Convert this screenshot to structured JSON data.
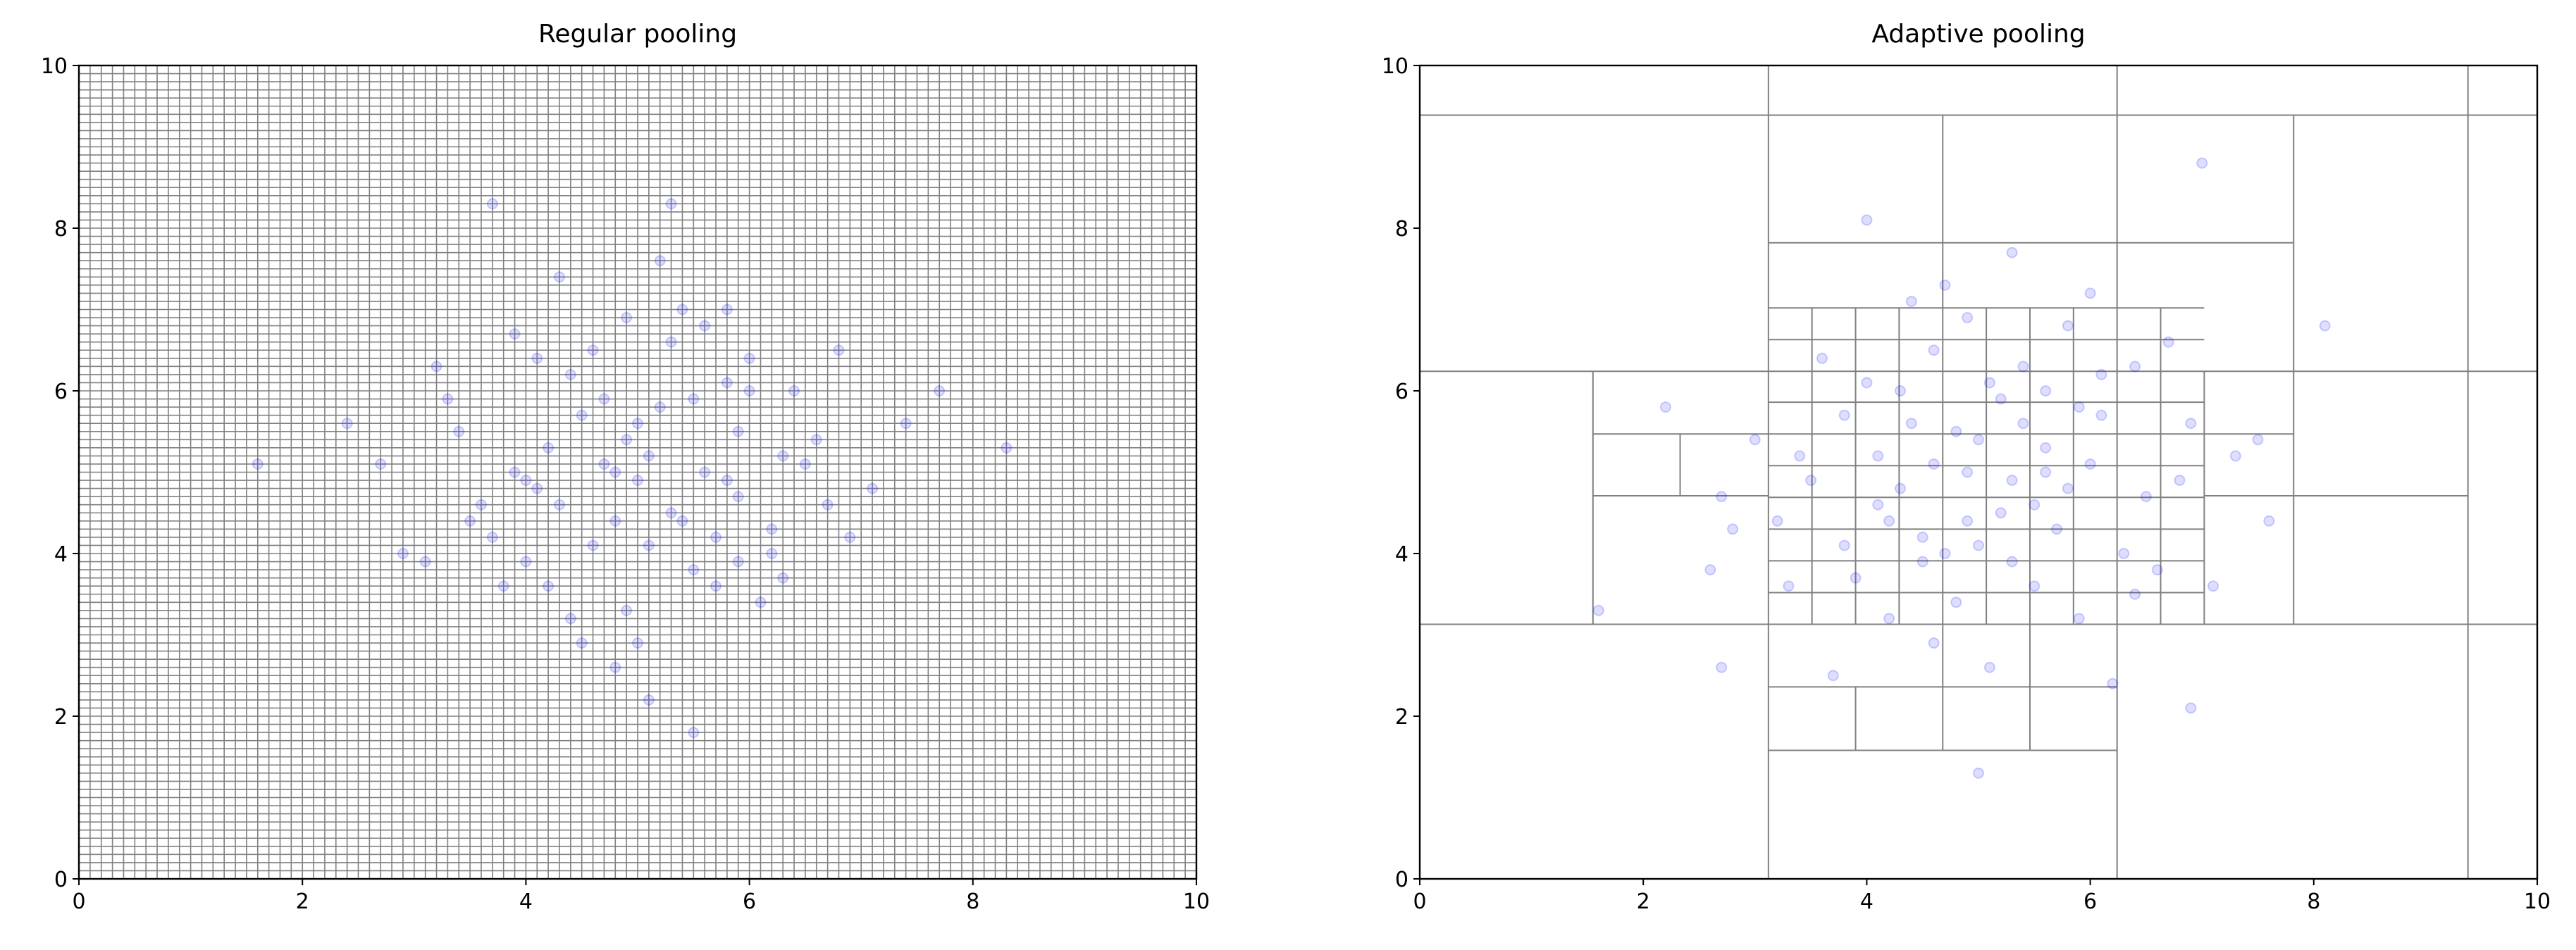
{
  "chart_data": [
    {
      "type": "scatter",
      "title": "Regular pooling",
      "color": "#0000ff",
      "cell_color": "#808080",
      "xlim": [
        0,
        10
      ],
      "ylim": [
        0,
        10
      ],
      "xticks": [
        0,
        2,
        4,
        6,
        8,
        10
      ],
      "yticks": [
        0,
        2,
        4,
        6,
        8,
        10
      ],
      "grid_cells": 100,
      "x": [
        5.1,
        4.3,
        5.8,
        3.9,
        6.2,
        4.7,
        5.5,
        4.1,
        5.0,
        6.6,
        3.4,
        4.9,
        5.3,
        5.9,
        4.5,
        6.0,
        3.7,
        5.6,
        4.8,
        5.2,
        2.7,
        7.1,
        4.4,
        5.7,
        6.3,
        4.0,
        5.4,
        3.2,
        6.8,
        4.6,
        5.0,
        5.9,
        4.2,
        6.1,
        3.6,
        5.3,
        4.9,
        7.4,
        2.9,
        5.8,
        4.3,
        6.4,
        3.8,
        5.1,
        4.7,
        5.5,
        6.9,
        3.3,
        4.0,
        5.6,
        8.3,
        1.6,
        4.8,
        5.2,
        6.2,
        3.9,
        5.0,
        4.4,
        6.5,
        3.5,
        5.7,
        4.6,
        5.4,
        2.4,
        7.7,
        4.1,
        5.9,
        6.0,
        4.5,
        5.3,
        3.1,
        6.7,
        4.9,
        5.1,
        4.2,
        5.8,
        3.7,
        6.3,
        4.8,
        5.5
      ],
      "values": [
        5.2,
        4.6,
        6.1,
        5.0,
        4.3,
        5.9,
        3.8,
        6.4,
        4.9,
        5.4,
        5.5,
        3.3,
        6.6,
        4.7,
        5.7,
        6.0,
        4.2,
        5.0,
        4.4,
        5.8,
        5.1,
        4.8,
        6.2,
        3.6,
        5.2,
        3.9,
        7.0,
        6.3,
        6.5,
        4.1,
        2.9,
        5.5,
        5.3,
        3.4,
        4.6,
        4.5,
        6.9,
        5.6,
        4.0,
        4.9,
        7.4,
        6.0,
        3.6,
        2.2,
        5.1,
        5.9,
        4.2,
        5.9,
        4.9,
        6.8,
        5.3,
        5.1,
        2.6,
        7.6,
        4.0,
        6.7,
        5.6,
        3.2,
        5.1,
        4.4,
        4.2,
        6.5,
        4.4,
        5.6,
        6.0,
        4.8,
        3.9,
        6.4,
        2.9,
        8.3,
        3.9,
        4.6,
        5.4,
        4.1,
        3.6,
        7.0,
        8.3,
        3.7,
        5.0,
        1.8
      ]
    },
    {
      "type": "scatter",
      "title": "Adaptive pooling",
      "color": "#0000ff",
      "cell_color": "#808080",
      "xlim": [
        0,
        10
      ],
      "ylim": [
        0,
        10
      ],
      "xticks": [
        0,
        2,
        4,
        6,
        8,
        10
      ],
      "yticks": [
        0,
        2,
        4,
        6,
        8,
        10
      ],
      "cell_edges": [
        [
          0,
          9.39,
          10,
          9.39
        ],
        [
          3.12,
          7.82,
          7.82,
          7.82
        ],
        [
          0,
          6.24,
          10,
          6.24
        ],
        [
          0,
          3.13,
          10,
          3.13
        ],
        [
          1.55,
          5.47,
          3.12,
          5.47
        ],
        [
          1.55,
          4.71,
          3.12,
          4.71
        ],
        [
          7.02,
          5.47,
          7.82,
          5.47
        ],
        [
          7.02,
          4.71,
          9.38,
          4.71
        ],
        [
          3.12,
          7.02,
          7.02,
          7.02
        ],
        [
          3.12,
          2.36,
          6.24,
          2.36
        ],
        [
          3.12,
          1.58,
          6.24,
          1.58
        ],
        [
          3.12,
          3.52,
          7.02,
          3.52
        ],
        [
          3.12,
          3.91,
          7.02,
          3.91
        ],
        [
          3.12,
          4.3,
          7.02,
          4.3
        ],
        [
          3.12,
          4.69,
          7.02,
          4.69
        ],
        [
          3.12,
          5.08,
          7.02,
          5.08
        ],
        [
          3.12,
          5.47,
          7.02,
          5.47
        ],
        [
          3.12,
          5.86,
          7.02,
          5.86
        ],
        [
          3.12,
          6.63,
          7.02,
          6.63
        ],
        [
          3.12,
          0,
          3.12,
          10
        ],
        [
          9.38,
          0,
          9.38,
          10
        ],
        [
          6.24,
          0,
          6.24,
          3.13
        ],
        [
          6.24,
          7.02,
          6.24,
          10
        ],
        [
          4.68,
          7.02,
          4.68,
          9.39
        ],
        [
          7.82,
          3.13,
          7.82,
          9.39
        ],
        [
          1.55,
          3.13,
          1.55,
          6.24
        ],
        [
          2.33,
          4.71,
          2.33,
          5.47
        ],
        [
          7.02,
          3.13,
          7.02,
          6.24
        ],
        [
          3.9,
          1.58,
          3.9,
          2.36
        ],
        [
          4.68,
          1.58,
          4.68,
          3.13
        ],
        [
          5.46,
          1.58,
          5.46,
          3.13
        ],
        [
          3.51,
          3.13,
          3.51,
          7.02
        ],
        [
          3.9,
          3.13,
          3.9,
          7.02
        ],
        [
          4.29,
          3.13,
          4.29,
          7.02
        ],
        [
          4.68,
          3.13,
          4.68,
          7.02
        ],
        [
          5.07,
          3.13,
          5.07,
          7.02
        ],
        [
          5.46,
          3.13,
          5.46,
          7.02
        ],
        [
          5.85,
          3.13,
          5.85,
          7.02
        ],
        [
          6.24,
          3.13,
          6.24,
          7.02
        ],
        [
          6.63,
          3.13,
          6.63,
          7.02
        ]
      ],
      "x": [
        4.9,
        5.6,
        4.2,
        6.1,
        3.8,
        5.3,
        4.6,
        6.5,
        5.0,
        4.4,
        5.8,
        3.5,
        6.9,
        4.8,
        5.2,
        4.0,
        6.3,
        5.5,
        3.2,
        4.7,
        7.3,
        2.7,
        5.9,
        4.3,
        6.0,
        3.9,
        5.4,
        4.5,
        6.7,
        5.1,
        3.0,
        5.7,
        4.1,
        6.4,
        4.8,
        5.3,
        2.2,
        7.6,
        4.6,
        5.9,
        8.1,
        1.6,
        5.0,
        7.0,
        3.6,
        6.2,
        4.0,
        5.6,
        4.3,
        6.6,
        3.3,
        5.2,
        4.9,
        6.8,
        2.6,
        5.5,
        4.4,
        6.1,
        3.8,
        5.0,
        4.7,
        6.4,
        3.4,
        5.8,
        4.2,
        7.1,
        2.8,
        5.3,
        4.6,
        6.0,
        3.7,
        5.6,
        4.1,
        6.9,
        4.9,
        5.4,
        2.7,
        7.5,
        4.5,
        5.1
      ],
      "values": [
        5.0,
        5.3,
        4.4,
        6.2,
        5.7,
        3.9,
        6.5,
        4.7,
        4.1,
        5.6,
        6.8,
        4.9,
        5.6,
        3.4,
        5.9,
        6.1,
        4.0,
        4.6,
        4.4,
        7.3,
        5.2,
        4.7,
        3.2,
        6.0,
        5.1,
        3.7,
        6.3,
        4.2,
        6.6,
        2.6,
        5.4,
        4.3,
        5.2,
        3.5,
        5.5,
        7.7,
        5.8,
        4.4,
        2.9,
        5.8,
        6.8,
        3.3,
        1.3,
        8.8,
        6.4,
        2.4,
        8.1,
        5.0,
        4.8,
        3.8,
        3.6,
        4.5,
        6.9,
        4.9,
        3.8,
        3.6,
        7.1,
        5.7,
        4.1,
        5.4,
        4.0,
        6.3,
        5.2,
        4.8,
        3.2,
        3.6,
        4.3,
        4.9,
        5.1,
        7.2,
        2.5,
        6.0,
        4.6,
        2.1,
        4.4,
        5.6,
        2.6,
        5.4,
        3.9,
        6.1
      ]
    }
  ]
}
